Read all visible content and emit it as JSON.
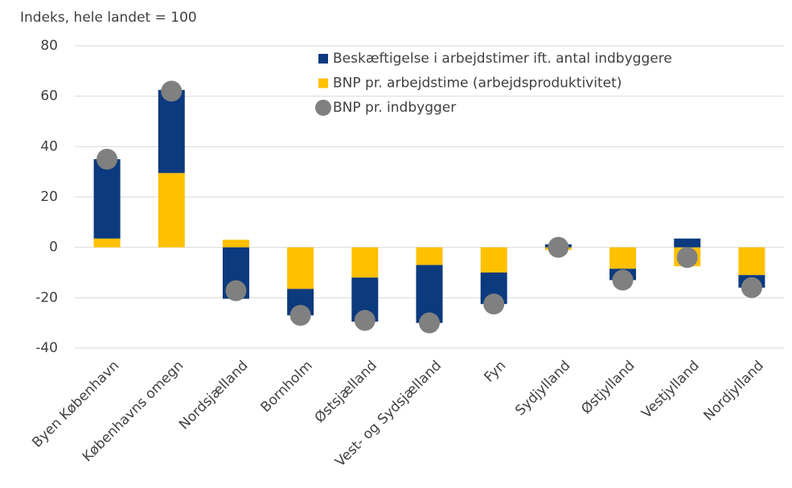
{
  "chart_data": {
    "type": "bar",
    "stacked": true,
    "ylabel": "Indeks, hele landet = 100",
    "categories": [
      "Byen København",
      "Københavns omegn",
      "Nordsjælland",
      "Bornholm",
      "Østsjælland",
      "Vest- og Sydsjælland",
      "Fyn",
      "Sydjylland",
      "Østjylland",
      "Vestjylland",
      "Nordjylland"
    ],
    "series": [
      {
        "name": "Beskæftigelse i arbejdstimer ift. antal indbyggere",
        "color": "#0b3a7e",
        "type": "bar",
        "values": [
          31.5,
          33,
          -20.4,
          -10.5,
          -17.5,
          -23,
          -12.5,
          1.2,
          -4.5,
          3.5,
          -5
        ]
      },
      {
        "name": "BNP pr. arbejdstime (arbejdsproduktivitet)",
        "color": "#ffc000",
        "type": "bar",
        "values": [
          3.5,
          29.5,
          3,
          -16.5,
          -12,
          -7,
          -10,
          -1,
          -8.5,
          -7.5,
          -11
        ]
      },
      {
        "name": "BNP pr. indbygger",
        "color": "#808080",
        "type": "scatter",
        "values": [
          35,
          62,
          -17.2,
          -27,
          -29,
          -30,
          -22.5,
          0,
          -13,
          -4,
          -16
        ]
      }
    ],
    "ylim": [
      -40,
      80
    ],
    "yticks": [
      -40,
      -20,
      0,
      20,
      40,
      60,
      80
    ],
    "grid": true
  }
}
